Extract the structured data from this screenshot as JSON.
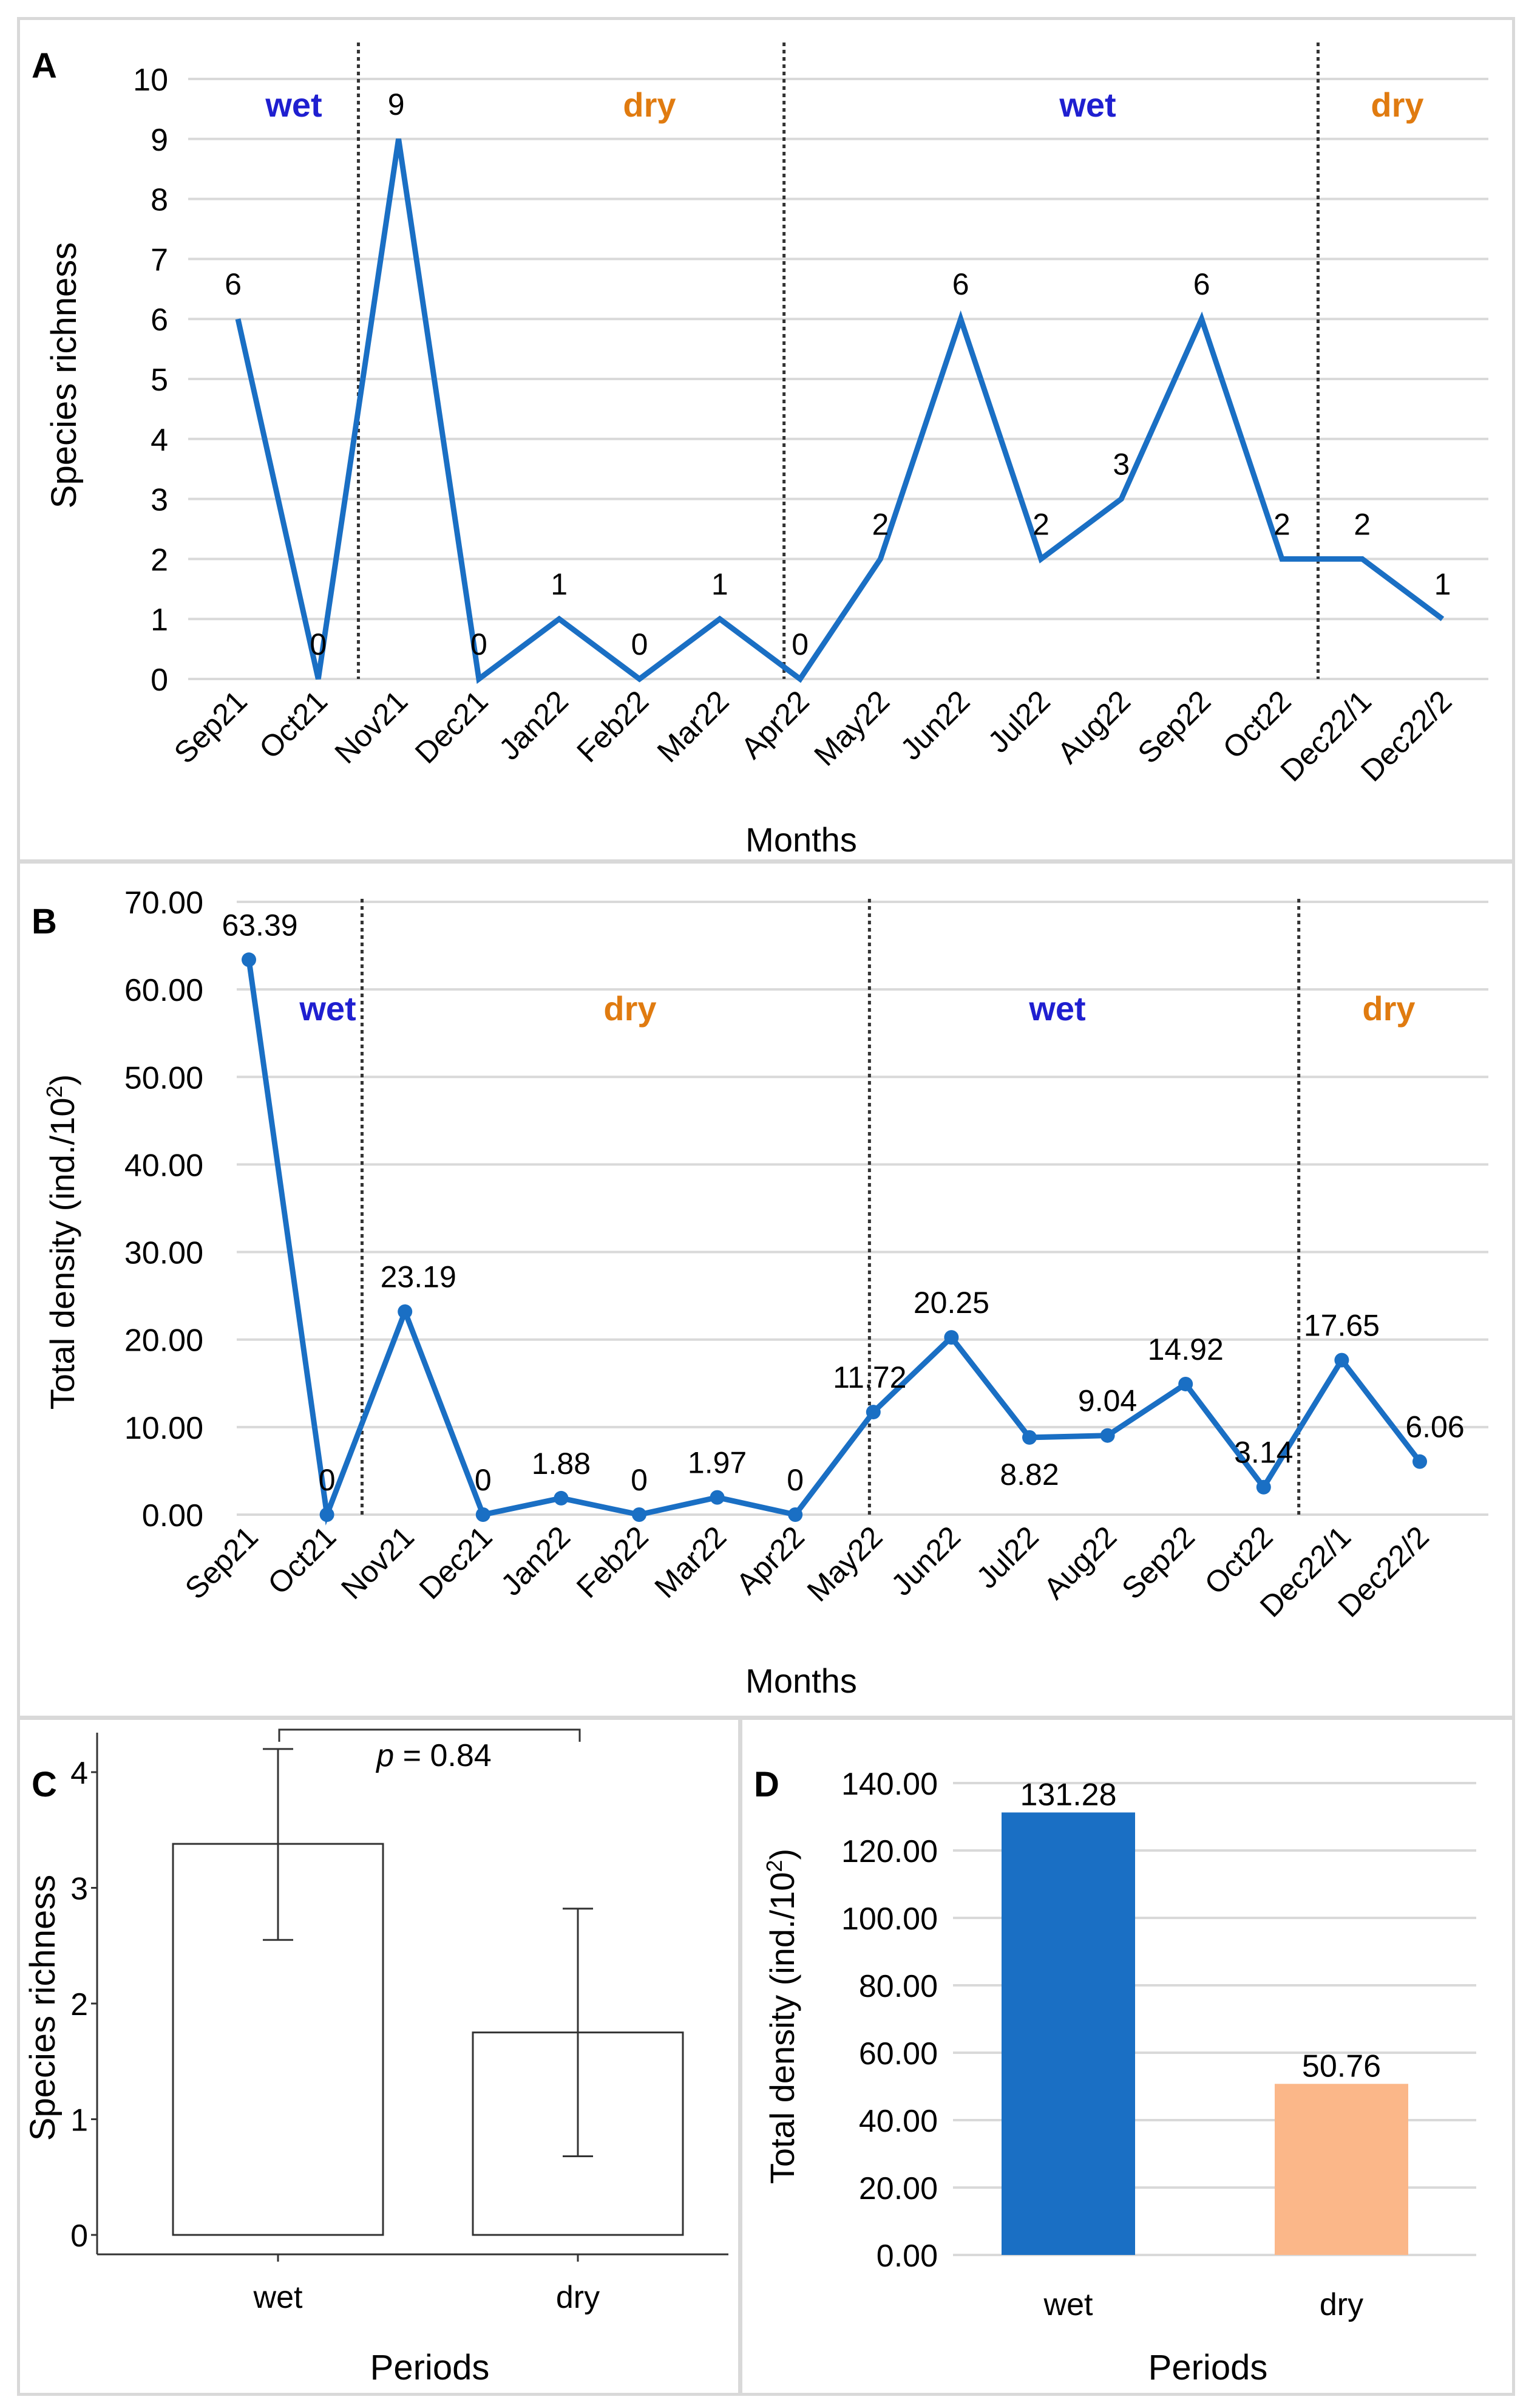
{
  "colors": {
    "line": "#1a6fc4",
    "wet_label": "#1f1fd0",
    "dry_label": "#e07b10",
    "grid": "#d9d9d9",
    "bar_wet": "#1a6fc4",
    "bar_dry": "#fbb789",
    "frame": "#d9d9d9"
  },
  "chart_data": [
    {
      "panel_label": "A",
      "type": "line",
      "ylabel": "Species richness",
      "xlabel": "Months",
      "ylim": [
        0,
        10
      ],
      "yticks": [
        "0",
        "1",
        "2",
        "3",
        "4",
        "5",
        "6",
        "7",
        "8",
        "9",
        "10"
      ],
      "categories": [
        "Sep21",
        "Oct21",
        "Nov21",
        "Dec21",
        "Jan22",
        "Feb22",
        "Mar22",
        "Apr22",
        "May22",
        "Jun22",
        "Jul22",
        "Aug22",
        "Sep22",
        "Oct22",
        "Dec22/1",
        "Dec22/2"
      ],
      "values": [
        6,
        0,
        9,
        0,
        1,
        0,
        1,
        0,
        2,
        6,
        2,
        3,
        6,
        2,
        2,
        1
      ],
      "value_labels": [
        "6",
        "0",
        "9",
        "0",
        "1",
        "0",
        "1",
        "0",
        "2",
        "6",
        "2",
        "3",
        "6",
        "2",
        "2",
        "1"
      ],
      "period_labels": [
        "wet",
        "dry",
        "wet",
        "dry"
      ],
      "markers": false,
      "grid": true
    },
    {
      "panel_label": "B",
      "type": "line",
      "ylabel_main": "Total density (ind./10",
      "ylabel_sup": "2",
      "ylabel_end": ")",
      "xlabel": "Months",
      "ylim": [
        0,
        70
      ],
      "yticks": [
        "0.00",
        "10.00",
        "20.00",
        "30.00",
        "40.00",
        "50.00",
        "60.00",
        "70.00"
      ],
      "categories": [
        "Sep21",
        "Oct21",
        "Nov21",
        "Dec21",
        "Jan22",
        "Feb22",
        "Mar22",
        "Apr22",
        "May22",
        "Jun22",
        "Jul22",
        "Aug22",
        "Sep22",
        "Oct22",
        "Dec22/1",
        "Dec22/2"
      ],
      "values": [
        63.39,
        0,
        23.19,
        0,
        1.88,
        0,
        1.97,
        0,
        11.72,
        20.25,
        8.82,
        9.04,
        14.92,
        3.14,
        17.65,
        6.06
      ],
      "value_labels": [
        "63.39",
        "0",
        "23.19",
        "0",
        "1.88",
        "0",
        "1.97",
        "0",
        "11.72",
        "20.25",
        "8.82",
        "9.04",
        "14.92",
        "3.14",
        "17.65",
        "6.06"
      ],
      "period_labels": [
        "wet",
        "dry",
        "wet",
        "dry"
      ],
      "markers": true,
      "grid": true
    },
    {
      "panel_label": "C",
      "type": "bar",
      "ylabel": "Species richness",
      "xlabel": "Periods",
      "ylim": [
        0,
        4.4
      ],
      "yticks": [
        "0",
        "1",
        "2",
        "3",
        "4"
      ],
      "categories": [
        "wet",
        "dry"
      ],
      "values": [
        3.38,
        1.75
      ],
      "error_low": [
        2.55,
        0.68
      ],
      "error_high": [
        4.2,
        2.82
      ],
      "annotation_p": "p",
      "annotation_rest": " = 0.84",
      "grid": false
    },
    {
      "panel_label": "D",
      "type": "bar",
      "ylabel_main": "Total density (ind./10",
      "ylabel_sup": "2",
      "ylabel_end": ")",
      "xlabel": "Periods",
      "ylim": [
        0,
        140
      ],
      "yticks": [
        "0.00",
        "20.00",
        "40.00",
        "60.00",
        "80.00",
        "100.00",
        "120.00",
        "140.00"
      ],
      "categories": [
        "wet",
        "dry"
      ],
      "values": [
        131.28,
        50.76
      ],
      "value_labels": [
        "131.28",
        "50.76"
      ],
      "grid": true
    }
  ]
}
